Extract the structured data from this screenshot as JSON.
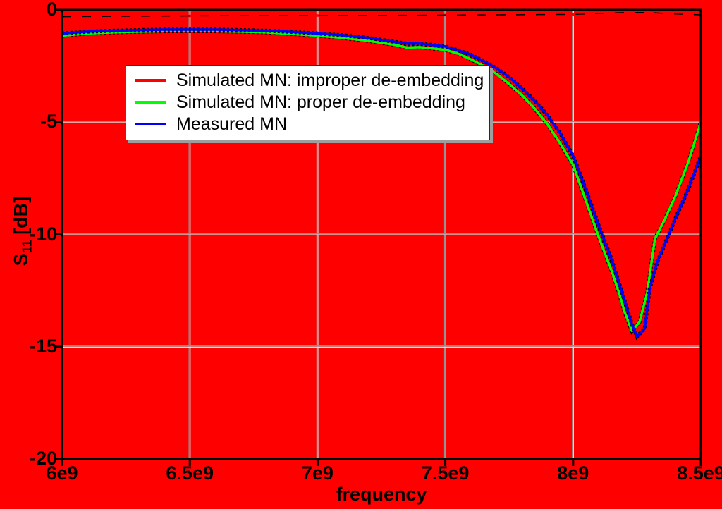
{
  "colors": {
    "background": "#ff0000",
    "plot_border": "#000000",
    "grid_main": "#8f8f8f",
    "grid_highlight": "#d9d9d9",
    "tick": "#000000",
    "legend_bg": "#ffffff",
    "legend_shadow": "#9e9e9e",
    "text": "#000000"
  },
  "chart_data": {
    "type": "line",
    "title": "",
    "xlabel": "frequency",
    "ylabel_prefix": "S",
    "ylabel_sub": "11",
    "ylabel_suffix": " [dB]",
    "xlim_ghz": [
      6.0,
      8.5
    ],
    "ylim": [
      -20,
      0
    ],
    "grid": true,
    "legend_position": "upper-left-inside",
    "xticks": [
      {
        "ghz": 6.0,
        "label": "6e9"
      },
      {
        "ghz": 6.5,
        "label": "6.5e9"
      },
      {
        "ghz": 7.0,
        "label": "7e9"
      },
      {
        "ghz": 7.5,
        "label": "7.5e9"
      },
      {
        "ghz": 8.0,
        "label": "8e9"
      },
      {
        "ghz": 8.5,
        "label": "8.5e9"
      }
    ],
    "yticks": [
      {
        "db": 0,
        "label": "0"
      },
      {
        "db": -5,
        "label": "-5"
      },
      {
        "db": -10,
        "label": "-10"
      },
      {
        "db": -15,
        "label": "-15"
      },
      {
        "db": -20,
        "label": "-20"
      }
    ],
    "series": [
      {
        "name": "Simulated MN: improper de-embedding",
        "color": "#ff0000",
        "visible_as": "black dashed fringe over red background",
        "fringe": "over-dashed",
        "points": [
          [
            6.0,
            -0.3
          ],
          [
            6.3,
            -0.28
          ],
          [
            6.6,
            -0.26
          ],
          [
            7.0,
            -0.25
          ],
          [
            7.4,
            -0.24
          ],
          [
            7.7,
            -0.22
          ],
          [
            8.0,
            -0.2
          ],
          [
            8.1,
            -0.16
          ],
          [
            8.2,
            -0.12
          ],
          [
            8.3,
            -0.12
          ],
          [
            8.4,
            -0.18
          ],
          [
            8.5,
            -0.22
          ]
        ]
      },
      {
        "name": "Simulated MN: proper de-embedding",
        "color": "#00ff00",
        "fringe": "under-dotted",
        "points": [
          [
            6.0,
            -1.15
          ],
          [
            6.1,
            -1.05
          ],
          [
            6.2,
            -1.0
          ],
          [
            6.3,
            -0.97
          ],
          [
            6.4,
            -0.95
          ],
          [
            6.5,
            -0.95
          ],
          [
            6.6,
            -0.95
          ],
          [
            6.7,
            -0.97
          ],
          [
            6.8,
            -1.0
          ],
          [
            6.9,
            -1.07
          ],
          [
            7.0,
            -1.15
          ],
          [
            7.1,
            -1.25
          ],
          [
            7.2,
            -1.38
          ],
          [
            7.3,
            -1.55
          ],
          [
            7.35,
            -1.68
          ],
          [
            7.4,
            -1.66
          ],
          [
            7.45,
            -1.72
          ],
          [
            7.5,
            -1.78
          ],
          [
            7.55,
            -1.95
          ],
          [
            7.6,
            -2.2
          ],
          [
            7.65,
            -2.5
          ],
          [
            7.7,
            -2.85
          ],
          [
            7.75,
            -3.3
          ],
          [
            7.8,
            -3.8
          ],
          [
            7.85,
            -4.4
          ],
          [
            7.9,
            -5.1
          ],
          [
            7.95,
            -5.95
          ],
          [
            8.0,
            -6.9
          ],
          [
            8.05,
            -8.5
          ],
          [
            8.1,
            -10.1
          ],
          [
            8.15,
            -11.6
          ],
          [
            8.18,
            -12.6
          ],
          [
            8.2,
            -13.4
          ],
          [
            8.23,
            -14.3
          ],
          [
            8.26,
            -13.9
          ],
          [
            8.29,
            -12.6
          ],
          [
            8.32,
            -10.2
          ],
          [
            8.36,
            -9.3
          ],
          [
            8.4,
            -8.3
          ],
          [
            8.45,
            -6.8
          ],
          [
            8.5,
            -5.0
          ]
        ]
      },
      {
        "name": "Measured MN",
        "color": "#0000ff",
        "fringe": "under-dotted",
        "points": [
          [
            6.0,
            -1.05
          ],
          [
            6.1,
            -0.97
          ],
          [
            6.2,
            -0.93
          ],
          [
            6.3,
            -0.9
          ],
          [
            6.4,
            -0.88
          ],
          [
            6.5,
            -0.88
          ],
          [
            6.6,
            -0.88
          ],
          [
            6.7,
            -0.9
          ],
          [
            6.8,
            -0.93
          ],
          [
            6.9,
            -0.98
          ],
          [
            7.0,
            -1.05
          ],
          [
            7.1,
            -1.13
          ],
          [
            7.2,
            -1.25
          ],
          [
            7.3,
            -1.42
          ],
          [
            7.35,
            -1.5
          ],
          [
            7.4,
            -1.5
          ],
          [
            7.45,
            -1.56
          ],
          [
            7.5,
            -1.63
          ],
          [
            7.55,
            -1.8
          ],
          [
            7.6,
            -2.0
          ],
          [
            7.65,
            -2.28
          ],
          [
            7.7,
            -2.6
          ],
          [
            7.75,
            -3.0
          ],
          [
            7.8,
            -3.5
          ],
          [
            7.85,
            -4.05
          ],
          [
            7.9,
            -4.7
          ],
          [
            7.95,
            -5.5
          ],
          [
            8.0,
            -6.5
          ],
          [
            8.05,
            -8.0
          ],
          [
            8.1,
            -9.6
          ],
          [
            8.15,
            -11.1
          ],
          [
            8.2,
            -12.9
          ],
          [
            8.23,
            -14.0
          ],
          [
            8.25,
            -14.55
          ],
          [
            8.28,
            -14.2
          ],
          [
            8.3,
            -12.4
          ],
          [
            8.33,
            -11.2
          ],
          [
            8.36,
            -10.4
          ],
          [
            8.4,
            -9.3
          ],
          [
            8.45,
            -8.0
          ],
          [
            8.5,
            -6.5
          ]
        ]
      }
    ]
  }
}
